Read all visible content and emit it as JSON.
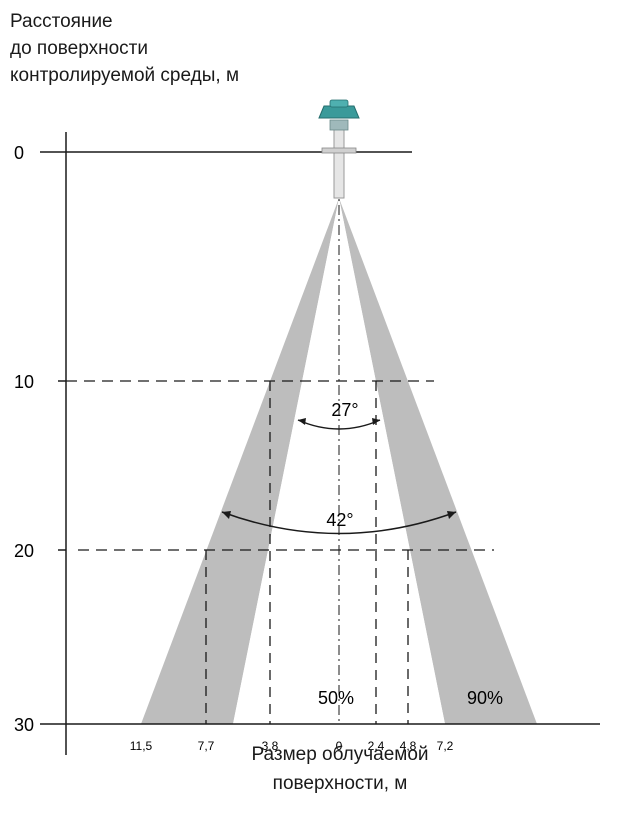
{
  "y_axis": {
    "label_lines": [
      "Расстояние",
      "до поверхности",
      "контролируемой среды, м"
    ],
    "ticks": [
      "0",
      "10",
      "20",
      "30"
    ]
  },
  "x_axis": {
    "label_lines": [
      "Размер облучаемой",
      "поверхности, м"
    ],
    "ticks": [
      "11,5",
      "7,7",
      "3,8",
      "0",
      "2,4",
      "4,8",
      "7,2"
    ]
  },
  "cones": {
    "inner_label": "50%",
    "outer_label": "90%",
    "inner_angle": "27°",
    "outer_angle": "42°"
  },
  "colors": {
    "cone_fill": "#bdbdbd",
    "sensor_head": "#3a9a9a",
    "lines": "#1a1a1a"
  }
}
